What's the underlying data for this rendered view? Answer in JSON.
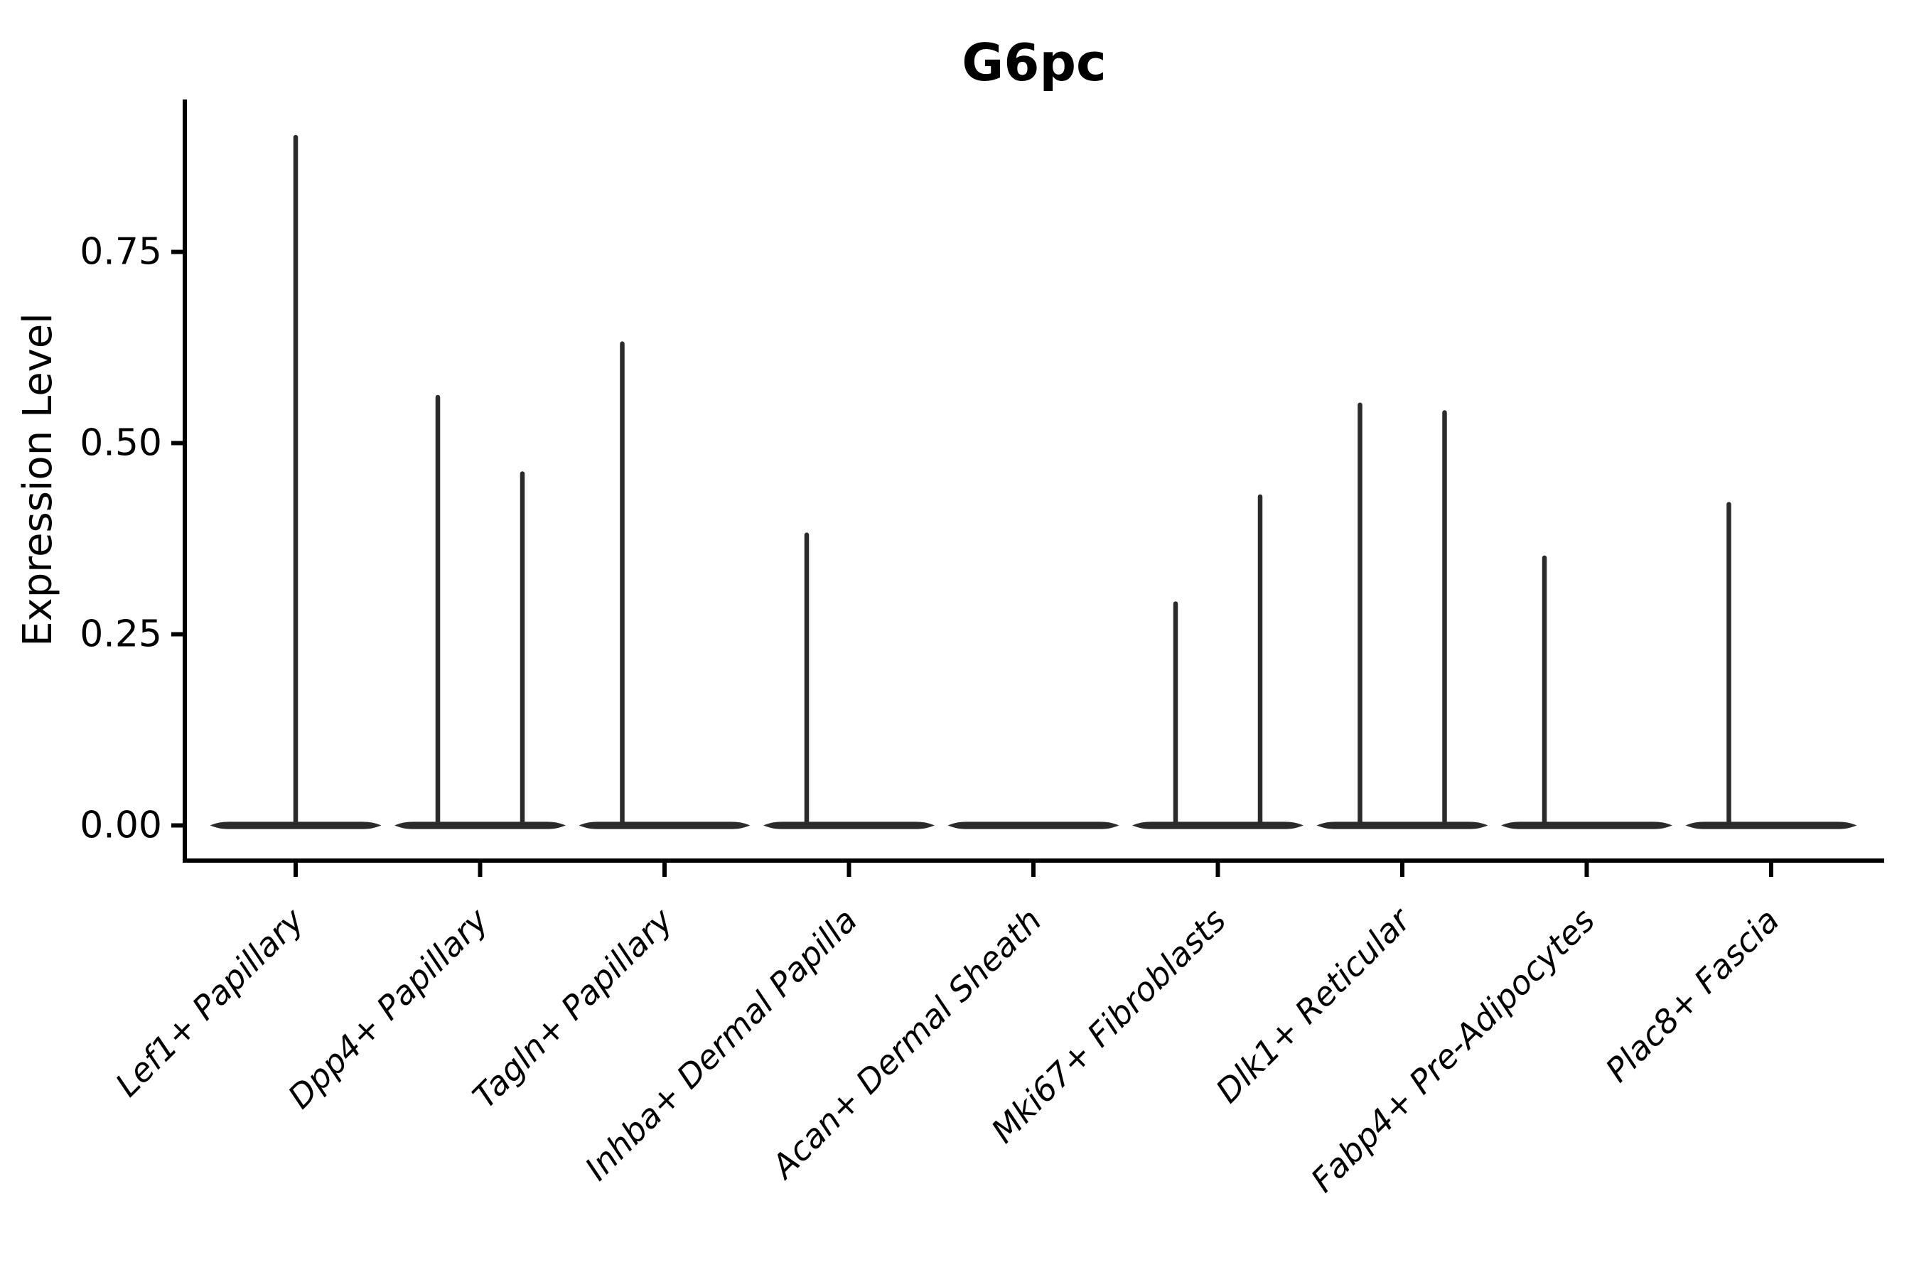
{
  "title": "G6pc",
  "colors": {
    "background": "#ffffff",
    "axis": "#000000",
    "text": "#000000",
    "violin": "#2b2b2b"
  },
  "chart_data": {
    "type": "violin",
    "title": "G6pc",
    "ylabel": "Expression Level",
    "xlabel": "",
    "grid": false,
    "legend_position": "none",
    "ylim": [
      0,
      0.95
    ],
    "yticks": [
      0,
      0.25,
      0.5,
      0.75
    ],
    "ytick_labels": [
      "0.00",
      "0.25",
      "0.50",
      "0.75"
    ],
    "categories": [
      "Lef1+ Papillary",
      "Dpp4+ Papillary",
      "Tagln+ Papillary",
      "Inhba+ Dermal Papilla",
      "Acan+ Dermal Sheath",
      "Mki67+ Fibroblasts",
      "Dlk1+ Reticular",
      "Fabp4+ Pre-Adipocytes",
      "Plac8+ Fascia"
    ],
    "violins": [
      {
        "label": "Lef1+ Papillary",
        "body_at_zero": true,
        "spikes": [
          {
            "dodge": "center",
            "max": 0.9
          }
        ]
      },
      {
        "label": "Dpp4+ Papillary",
        "body_at_zero": true,
        "spikes": [
          {
            "dodge": "left",
            "max": 0.56
          },
          {
            "dodge": "right",
            "max": 0.46
          }
        ]
      },
      {
        "label": "Tagln+ Papillary",
        "body_at_zero": true,
        "spikes": [
          {
            "dodge": "left",
            "max": 0.63
          }
        ]
      },
      {
        "label": "Inhba+ Dermal Papilla",
        "body_at_zero": true,
        "spikes": [
          {
            "dodge": "left",
            "max": 0.38
          }
        ]
      },
      {
        "label": "Acan+ Dermal Sheath",
        "body_at_zero": true,
        "spikes": []
      },
      {
        "label": "Mki67+ Fibroblasts",
        "body_at_zero": true,
        "spikes": [
          {
            "dodge": "left",
            "max": 0.29
          },
          {
            "dodge": "right",
            "max": 0.43
          }
        ]
      },
      {
        "label": "Dlk1+ Reticular",
        "body_at_zero": true,
        "spikes": [
          {
            "dodge": "left",
            "max": 0.55
          },
          {
            "dodge": "right",
            "max": 0.54
          }
        ]
      },
      {
        "label": "Fabp4+ Pre-Adipocytes",
        "body_at_zero": true,
        "spikes": [
          {
            "dodge": "left",
            "max": 0.35
          }
        ]
      },
      {
        "label": "Plac8+ Fascia",
        "body_at_zero": true,
        "spikes": [
          {
            "dodge": "left",
            "max": 0.42
          }
        ]
      }
    ]
  }
}
